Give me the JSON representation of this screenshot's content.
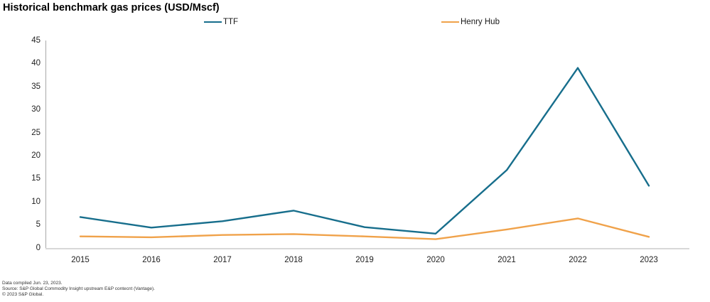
{
  "title": "Historical benchmark gas prices (USD/Mscf)",
  "footer": {
    "line1": "Data compiled Jun. 23, 2023.",
    "line2": "Source: S&P Global Commodity Insight upstream E&P contecnt (Vantage).",
    "line3": "© 2023 S&P Global."
  },
  "chart_data": {
    "type": "line",
    "title": "Historical benchmark gas prices (USD/Mscf)",
    "categories": [
      "2015",
      "2016",
      "2017",
      "2018",
      "2019",
      "2020",
      "2021",
      "2022",
      "2023"
    ],
    "series": [
      {
        "name": "TTF",
        "color": "#176E8C",
        "values": [
          6.8,
          4.5,
          5.9,
          8.2,
          4.6,
          3.2,
          17.0,
          39.2,
          13.6
        ]
      },
      {
        "name": "Henry Hub",
        "color": "#F0A24A",
        "values": [
          2.6,
          2.4,
          2.9,
          3.1,
          2.6,
          2.0,
          4.1,
          6.5,
          2.5
        ]
      }
    ],
    "yticks": [
      0,
      5,
      10,
      15,
      20,
      25,
      30,
      35,
      40,
      45
    ],
    "ylim": [
      0,
      45
    ],
    "xlabel": "",
    "ylabel": "",
    "grid": false,
    "legend_position": "top"
  }
}
